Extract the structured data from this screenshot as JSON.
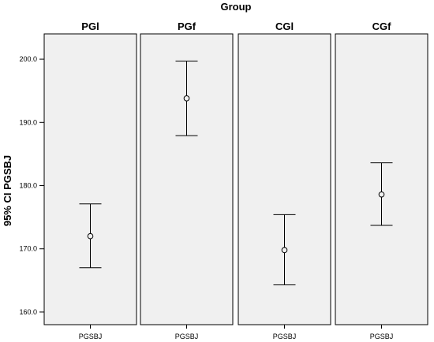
{
  "chart_data": {
    "type": "errorbar",
    "title": "Group",
    "ylabel": "95% CI PGSBJ",
    "ylim": [
      158,
      204
    ],
    "yticks": [
      160.0,
      170.0,
      180.0,
      190.0,
      200.0
    ],
    "ytick_labels": [
      "160.0",
      "170.0",
      "180.0",
      "190.0",
      "200.0"
    ],
    "category": "PGSBJ",
    "panels": [
      {
        "label": "PGl",
        "mean": 172.0,
        "lower": 167.0,
        "upper": 177.1
      },
      {
        "label": "PGf",
        "mean": 193.8,
        "lower": 187.9,
        "upper": 199.7
      },
      {
        "label": "CGl",
        "mean": 169.8,
        "lower": 164.3,
        "upper": 175.4
      },
      {
        "label": "CGf",
        "mean": 178.6,
        "lower": 173.7,
        "upper": 183.6
      }
    ],
    "panel_color": "#f0f0f0",
    "grid": false
  }
}
